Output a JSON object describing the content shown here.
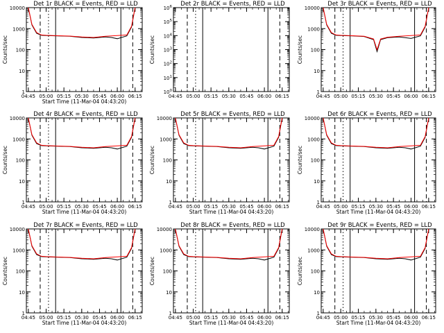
{
  "chart_data": [
    {
      "type": "line",
      "title": "Det 1r BLACK = Events, RED = LLD",
      "xlabel": "Start Time (11-Mar-04 04:43:20)",
      "ylabel": "Counts/sec",
      "yscale": "log",
      "ylim": [
        1,
        10000
      ],
      "x_ticks": [
        "04:45",
        "05:00",
        "05:15",
        "05:30",
        "05:45",
        "06:00",
        "06:15"
      ],
      "y_ticks": [
        "1",
        "10",
        "100",
        "1000",
        "10000"
      ],
      "vlines_solid": [
        "05:08",
        "06:03"
      ],
      "vlines_dashed": [
        "04:55",
        "06:13"
      ],
      "vlines_dotted": [
        "05:02"
      ],
      "series": [
        {
          "name": "BLACK",
          "color": "#000000",
          "x": [
            "04:45",
            "04:48",
            "04:52",
            "04:56",
            "05:00",
            "05:10",
            "05:20",
            "05:30",
            "05:40",
            "05:50",
            "05:55",
            "06:00",
            "06:08",
            "06:12",
            "06:15"
          ],
          "y": [
            10000,
            1500,
            600,
            480,
            470,
            450,
            430,
            380,
            360,
            400,
            380,
            330,
            450,
            1200,
            10000
          ]
        },
        {
          "name": "RED",
          "color": "#ff0000",
          "x": [
            "04:45",
            "04:48",
            "04:52",
            "04:56",
            "05:00",
            "05:10",
            "05:20",
            "05:30",
            "05:40",
            "05:50",
            "06:00",
            "06:08",
            "06:12",
            "06:15"
          ],
          "y": [
            10000,
            1600,
            650,
            500,
            480,
            460,
            440,
            400,
            380,
            430,
            470,
            500,
            1300,
            10000
          ]
        }
      ]
    },
    {
      "type": "line",
      "title": "Det 2r BLACK = Events, RED = LLD",
      "xlabel": "",
      "ylabel": "Counts/sec",
      "yscale": "log",
      "ylim": [
        1,
        1000000
      ],
      "x_ticks": [
        "04:45",
        "05:00",
        "05:15",
        "05:30",
        "05:45",
        "06:00",
        "06:15"
      ],
      "y_ticks": [
        "10^0",
        "10^1",
        "10^2",
        "10^3",
        "10^4",
        "10^5",
        "10^6"
      ],
      "vlines_solid": [
        "05:08",
        "06:03"
      ],
      "vlines_dashed": [
        "04:55",
        "06:13"
      ],
      "vlines_dotted": [
        "05:02"
      ],
      "series": []
    },
    {
      "type": "line",
      "title": "Det 3r BLACK = Events, RED = LLD",
      "xlabel": "",
      "ylabel": "Counts/sec",
      "yscale": "log",
      "ylim": [
        1,
        10000
      ],
      "x_ticks": [
        "04:45",
        "05:00",
        "05:15",
        "05:30",
        "05:45",
        "06:00",
        "06:15"
      ],
      "y_ticks": [
        "1",
        "10",
        "100",
        "1000",
        "10000"
      ],
      "vlines_solid": [
        "05:08",
        "06:03"
      ],
      "vlines_dashed": [
        "04:55",
        "06:13"
      ],
      "vlines_dotted": [
        "05:02"
      ],
      "series": [
        {
          "name": "BLACK",
          "color": "#000000",
          "x": [
            "04:45",
            "04:48",
            "04:52",
            "04:56",
            "05:00",
            "05:10",
            "05:20",
            "05:28",
            "05:31",
            "05:34",
            "05:40",
            "05:50",
            "06:00",
            "06:08",
            "06:12",
            "06:15"
          ],
          "y": [
            10000,
            1500,
            600,
            480,
            470,
            450,
            420,
            300,
            80,
            300,
            370,
            400,
            340,
            450,
            1200,
            10000
          ]
        },
        {
          "name": "RED",
          "color": "#ff0000",
          "x": [
            "04:45",
            "04:48",
            "04:52",
            "04:56",
            "05:00",
            "05:10",
            "05:20",
            "05:28",
            "05:31",
            "05:34",
            "05:40",
            "05:50",
            "06:00",
            "06:08",
            "06:12",
            "06:15"
          ],
          "y": [
            10000,
            1600,
            650,
            500,
            480,
            460,
            430,
            320,
            100,
            320,
            390,
            430,
            470,
            500,
            1300,
            10000
          ]
        }
      ]
    },
    {
      "type": "line",
      "title": "Det 4r BLACK = Events, RED = LLD",
      "xlabel": "Start Time (11-Mar-04 04:43:20)",
      "ylabel": "Counts/sec",
      "yscale": "log",
      "ylim": [
        1,
        10000
      ],
      "x_ticks": [
        "04:45",
        "05:00",
        "05:15",
        "05:30",
        "05:45",
        "06:00",
        "06:15"
      ],
      "y_ticks": [
        "1",
        "10",
        "100",
        "1000",
        "10000"
      ],
      "vlines_solid": [
        "05:08",
        "06:03"
      ],
      "vlines_dashed": [
        "04:55",
        "06:13"
      ],
      "vlines_dotted": [
        "05:02"
      ],
      "series": [
        {
          "name": "BLACK",
          "color": "#000000",
          "x": [
            "04:45",
            "04:48",
            "04:52",
            "04:56",
            "05:00",
            "05:10",
            "05:20",
            "05:30",
            "05:40",
            "05:50",
            "05:55",
            "06:00",
            "06:08",
            "06:12",
            "06:15"
          ],
          "y": [
            10000,
            1500,
            600,
            480,
            470,
            450,
            430,
            380,
            360,
            400,
            380,
            330,
            450,
            1200,
            10000
          ]
        },
        {
          "name": "RED",
          "color": "#ff0000",
          "x": [
            "04:45",
            "04:48",
            "04:52",
            "04:56",
            "05:00",
            "05:10",
            "05:20",
            "05:30",
            "05:40",
            "05:50",
            "06:00",
            "06:08",
            "06:12",
            "06:15"
          ],
          "y": [
            10000,
            1600,
            650,
            500,
            480,
            460,
            440,
            400,
            380,
            430,
            470,
            500,
            1300,
            10000
          ]
        }
      ]
    },
    {
      "type": "line",
      "title": "Det 5r BLACK = Events, RED = LLD",
      "xlabel": "Start Time (11-Mar-04 04:43:20)",
      "ylabel": "Counts/sec",
      "yscale": "log",
      "ylim": [
        1,
        10000
      ],
      "x_ticks": [
        "04:45",
        "05:00",
        "05:15",
        "05:30",
        "05:45",
        "06:00",
        "06:15"
      ],
      "y_ticks": [
        "1",
        "10",
        "100",
        "1000",
        "10000"
      ],
      "vlines_solid": [
        "05:08",
        "06:03"
      ],
      "vlines_dashed": [
        "04:55",
        "06:13"
      ],
      "vlines_dotted": [
        "05:02"
      ],
      "series": [
        {
          "name": "BLACK",
          "color": "#000000",
          "x": [
            "04:45",
            "04:48",
            "04:52",
            "04:56",
            "05:00",
            "05:10",
            "05:20",
            "05:30",
            "05:40",
            "05:50",
            "05:55",
            "06:00",
            "06:08",
            "06:12",
            "06:15"
          ],
          "y": [
            10000,
            1500,
            600,
            480,
            470,
            450,
            430,
            380,
            360,
            400,
            380,
            330,
            450,
            1200,
            10000
          ]
        },
        {
          "name": "RED",
          "color": "#ff0000",
          "x": [
            "04:45",
            "04:48",
            "04:52",
            "04:56",
            "05:00",
            "05:10",
            "05:20",
            "05:30",
            "05:40",
            "05:50",
            "06:00",
            "06:08",
            "06:12",
            "06:15"
          ],
          "y": [
            10000,
            1600,
            650,
            500,
            480,
            460,
            440,
            400,
            380,
            430,
            470,
            500,
            1300,
            10000
          ]
        }
      ]
    },
    {
      "type": "line",
      "title": "Det 6r BLACK = Events, RED = LLD",
      "xlabel": "Start Time (11-Mar-04 04:43:20)",
      "ylabel": "Counts/sec",
      "yscale": "log",
      "ylim": [
        1,
        10000
      ],
      "x_ticks": [
        "04:45",
        "05:00",
        "05:15",
        "05:30",
        "05:45",
        "06:00",
        "06:15"
      ],
      "y_ticks": [
        "1",
        "10",
        "100",
        "1000",
        "10000"
      ],
      "vlines_solid": [
        "05:08",
        "06:03"
      ],
      "vlines_dashed": [
        "04:55",
        "06:13"
      ],
      "vlines_dotted": [
        "05:02"
      ],
      "series": [
        {
          "name": "BLACK",
          "color": "#000000",
          "x": [
            "04:45",
            "04:48",
            "04:52",
            "04:56",
            "05:00",
            "05:10",
            "05:20",
            "05:30",
            "05:40",
            "05:50",
            "05:55",
            "06:00",
            "06:08",
            "06:12",
            "06:15"
          ],
          "y": [
            10000,
            1500,
            600,
            480,
            470,
            450,
            430,
            380,
            360,
            400,
            380,
            330,
            450,
            1200,
            10000
          ]
        },
        {
          "name": "RED",
          "color": "#ff0000",
          "x": [
            "04:45",
            "04:48",
            "04:52",
            "04:56",
            "05:00",
            "05:10",
            "05:20",
            "05:30",
            "05:40",
            "05:50",
            "06:00",
            "06:08",
            "06:12",
            "06:15"
          ],
          "y": [
            10000,
            1600,
            650,
            500,
            480,
            460,
            440,
            400,
            380,
            430,
            470,
            500,
            1300,
            10000
          ]
        }
      ]
    },
    {
      "type": "line",
      "title": "Det 7r BLACK = Events, RED = LLD",
      "xlabel": "Start Time (11-Mar-04 04:43:20)",
      "ylabel": "Counts/sec",
      "yscale": "log",
      "ylim": [
        1,
        10000
      ],
      "x_ticks": [
        "04:45",
        "05:00",
        "05:15",
        "05:30",
        "05:45",
        "06:00",
        "06:15"
      ],
      "y_ticks": [
        "1",
        "10",
        "100",
        "1000",
        "10000"
      ],
      "vlines_solid": [
        "05:08",
        "06:03"
      ],
      "vlines_dashed": [
        "04:55",
        "06:13"
      ],
      "vlines_dotted": [
        "05:02"
      ],
      "series": [
        {
          "name": "BLACK",
          "color": "#000000",
          "x": [
            "04:45",
            "04:48",
            "04:52",
            "04:56",
            "05:00",
            "05:10",
            "05:20",
            "05:30",
            "05:40",
            "05:50",
            "05:55",
            "06:00",
            "06:08",
            "06:12",
            "06:15"
          ],
          "y": [
            10000,
            1500,
            600,
            480,
            470,
            450,
            430,
            380,
            360,
            400,
            380,
            330,
            450,
            1200,
            10000
          ]
        },
        {
          "name": "RED",
          "color": "#ff0000",
          "x": [
            "04:45",
            "04:48",
            "04:52",
            "04:56",
            "05:00",
            "05:10",
            "05:20",
            "05:30",
            "05:40",
            "05:50",
            "06:00",
            "06:08",
            "06:12",
            "06:15"
          ],
          "y": [
            10000,
            1600,
            650,
            500,
            480,
            460,
            440,
            400,
            380,
            430,
            470,
            500,
            1300,
            10000
          ]
        }
      ]
    },
    {
      "type": "line",
      "title": "Det 8r BLACK = Events, RED = LLD",
      "xlabel": "Start Time (11-Mar-04 04:43:20)",
      "ylabel": "Counts/sec",
      "yscale": "log",
      "ylim": [
        1,
        10000
      ],
      "x_ticks": [
        "04:45",
        "05:00",
        "05:15",
        "05:30",
        "05:45",
        "06:00",
        "06:15"
      ],
      "y_ticks": [
        "1",
        "10",
        "100",
        "1000",
        "10000"
      ],
      "vlines_solid": [
        "05:08",
        "06:03"
      ],
      "vlines_dashed": [
        "04:55",
        "06:13"
      ],
      "vlines_dotted": [
        "05:02"
      ],
      "series": [
        {
          "name": "BLACK",
          "color": "#000000",
          "x": [
            "04:45",
            "04:48",
            "04:52",
            "04:56",
            "05:00",
            "05:10",
            "05:20",
            "05:30",
            "05:40",
            "05:50",
            "05:55",
            "06:00",
            "06:08",
            "06:12",
            "06:15"
          ],
          "y": [
            10000,
            1500,
            600,
            480,
            470,
            450,
            430,
            380,
            360,
            400,
            380,
            330,
            450,
            1200,
            10000
          ]
        },
        {
          "name": "RED",
          "color": "#ff0000",
          "x": [
            "04:45",
            "04:48",
            "04:52",
            "04:56",
            "05:00",
            "05:10",
            "05:20",
            "05:30",
            "05:40",
            "05:50",
            "06:00",
            "06:08",
            "06:12",
            "06:15"
          ],
          "y": [
            10000,
            1600,
            650,
            500,
            480,
            460,
            440,
            400,
            380,
            430,
            470,
            500,
            1300,
            10000
          ]
        }
      ]
    },
    {
      "type": "line",
      "title": "Det 9r BLACK = Events, RED = LLD",
      "xlabel": "Start Time (11-Mar-04 04:43:20)",
      "ylabel": "Counts/sec",
      "yscale": "log",
      "ylim": [
        1,
        10000
      ],
      "x_ticks": [
        "04:45",
        "05:00",
        "05:15",
        "05:30",
        "05:45",
        "06:00",
        "06:15"
      ],
      "y_ticks": [
        "1",
        "10",
        "100",
        "1000",
        "10000"
      ],
      "vlines_solid": [
        "05:08",
        "06:03"
      ],
      "vlines_dashed": [
        "04:55",
        "06:13"
      ],
      "vlines_dotted": [
        "05:02"
      ],
      "series": [
        {
          "name": "BLACK",
          "color": "#000000",
          "x": [
            "04:45",
            "04:48",
            "04:52",
            "04:56",
            "05:00",
            "05:10",
            "05:20",
            "05:30",
            "05:40",
            "05:50",
            "05:55",
            "06:00",
            "06:08",
            "06:12",
            "06:15"
          ],
          "y": [
            10000,
            1500,
            600,
            480,
            470,
            450,
            430,
            380,
            360,
            400,
            380,
            330,
            450,
            1200,
            10000
          ]
        },
        {
          "name": "RED",
          "color": "#ff0000",
          "x": [
            "04:45",
            "04:48",
            "04:52",
            "04:56",
            "05:00",
            "05:10",
            "05:20",
            "05:30",
            "05:40",
            "05:50",
            "06:00",
            "06:08",
            "06:12",
            "06:15"
          ],
          "y": [
            10000,
            1600,
            650,
            500,
            480,
            460,
            440,
            400,
            380,
            430,
            470,
            500,
            1300,
            10000
          ]
        }
      ]
    }
  ]
}
